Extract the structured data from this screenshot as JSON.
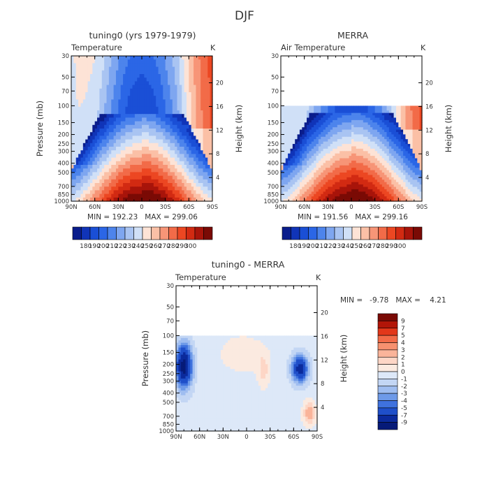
{
  "figure_title": "DJF",
  "chart_data": [
    {
      "type": "heatmap",
      "title": "tuning0 (yrs 1979-1979)",
      "variable_label": "Temperature",
      "units_label": "K",
      "xlabel": "",
      "ylabel": "Pressure (mb)",
      "right_ylabel": "Height (km)",
      "x_ticks": [
        "90N",
        "60N",
        "30N",
        "0",
        "30S",
        "60S",
        "90S"
      ],
      "y_ticks": [
        "30",
        "50",
        "70",
        "100",
        "150",
        "200",
        "250",
        "300",
        "400",
        "500",
        "700",
        "850",
        "1000"
      ],
      "right_ticks": [
        "20",
        "16",
        "12",
        "8",
        "4"
      ],
      "stats_text": "MIN = 192.23   MAX = 299.06",
      "min": 192.23,
      "max": 299.06,
      "colorbar_labels": [
        "180",
        "190",
        "200",
        "210",
        "220",
        "230",
        "240",
        "250",
        "260",
        "270",
        "280",
        "290",
        "300"
      ],
      "colorbar_orientation": "horizontal",
      "data_top_pressure": 30
    },
    {
      "type": "heatmap",
      "title": "MERRA",
      "variable_label": "Air Temperature",
      "units_label": "K",
      "xlabel": "",
      "ylabel": "",
      "right_ylabel": "Height (km)",
      "x_ticks": [
        "90N",
        "60N",
        "30N",
        "0",
        "30S",
        "60S",
        "90S"
      ],
      "y_ticks": [
        "30",
        "50",
        "70",
        "100",
        "150",
        "200",
        "250",
        "300",
        "400",
        "500",
        "700",
        "850",
        "1000"
      ],
      "right_ticks": [
        "20",
        "16",
        "12",
        "8",
        "4"
      ],
      "stats_text": "MIN = 191.56   MAX = 299.16",
      "min": 191.56,
      "max": 299.16,
      "colorbar_labels": [
        "180",
        "190",
        "200",
        "210",
        "220",
        "230",
        "240",
        "250",
        "260",
        "270",
        "280",
        "290",
        "300"
      ],
      "colorbar_orientation": "horizontal",
      "data_top_pressure": 100
    },
    {
      "type": "heatmap",
      "title": "tuning0 - MERRA",
      "variable_label": "Temperature",
      "units_label": "K",
      "xlabel": "",
      "ylabel": "Pressure (mb)",
      "right_ylabel": "Height (km)",
      "x_ticks": [
        "90N",
        "60N",
        "30N",
        "0",
        "30S",
        "60S",
        "90S"
      ],
      "y_ticks": [
        "30",
        "50",
        "70",
        "100",
        "150",
        "200",
        "250",
        "300",
        "400",
        "500",
        "700",
        "850",
        "1000"
      ],
      "right_ticks": [
        "20",
        "16",
        "12",
        "8",
        "4"
      ],
      "stats_text": "MIN =   -9.78   MAX =    4.21",
      "min": -9.78,
      "max": 4.21,
      "colorbar_labels": [
        "9",
        "7",
        "5",
        "4",
        "3",
        "2",
        "1",
        "0",
        "-1",
        "-2",
        "-3",
        "-4",
        "-5",
        "-7",
        "-9"
      ],
      "colorbar_orientation": "vertical",
      "data_top_pressure": 100
    }
  ],
  "colors": {
    "temp_scale": [
      "#0a1d8c",
      "#1034b8",
      "#1a4fd6",
      "#2b66e6",
      "#4d84ec",
      "#7ea6f0",
      "#a9c4f2",
      "#d0e0f7",
      "#fde3d6",
      "#fbc0a6",
      "#f79577",
      "#f26b48",
      "#ec4722",
      "#d22a12",
      "#a8140a",
      "#7a0a05"
    ],
    "diff_scale": [
      "#7a0a05",
      "#b21508",
      "#e2371a",
      "#f26b48",
      "#f7916f",
      "#fab49a",
      "#fdd6c6",
      "#fbeae0",
      "#dde8f8",
      "#c3d6f4",
      "#9fbdf0",
      "#6e9ae8",
      "#3f72de",
      "#1f4fc9",
      "#0b2a9c",
      "#061a78"
    ]
  }
}
